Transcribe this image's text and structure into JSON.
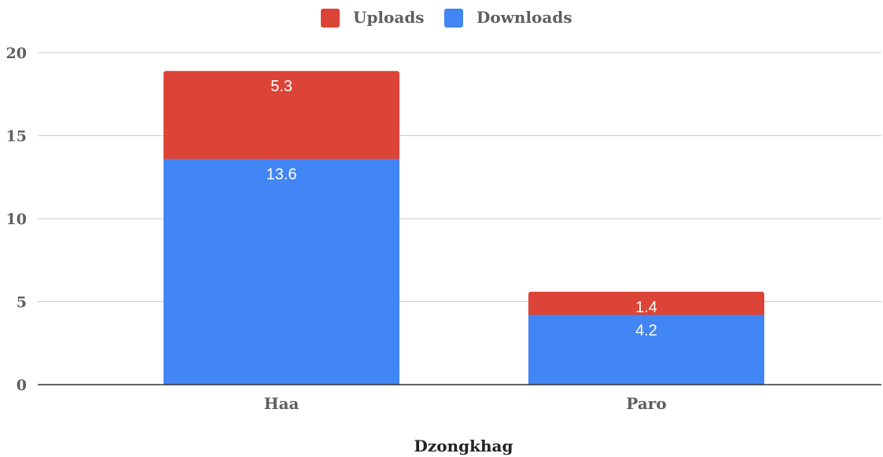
{
  "chart_data": {
    "type": "bar",
    "stacked": true,
    "title": "",
    "xlabel": "Dzongkhag",
    "ylabel": "",
    "categories": [
      "Haa",
      "Paro"
    ],
    "series": [
      {
        "name": "Downloads",
        "color": "#4285f4",
        "values": [
          13.6,
          4.2
        ],
        "labels": [
          "13.6",
          "4.2"
        ]
      },
      {
        "name": "Uploads",
        "color": "#db4437",
        "values": [
          5.3,
          1.4
        ],
        "labels": [
          "5.3",
          "1.4"
        ]
      }
    ],
    "legend_order": [
      "Uploads",
      "Downloads"
    ],
    "legend_position": "top",
    "ylim": [
      0,
      20
    ],
    "yticks": [
      "0",
      "5",
      "10",
      "15",
      "20"
    ],
    "grid": true
  }
}
